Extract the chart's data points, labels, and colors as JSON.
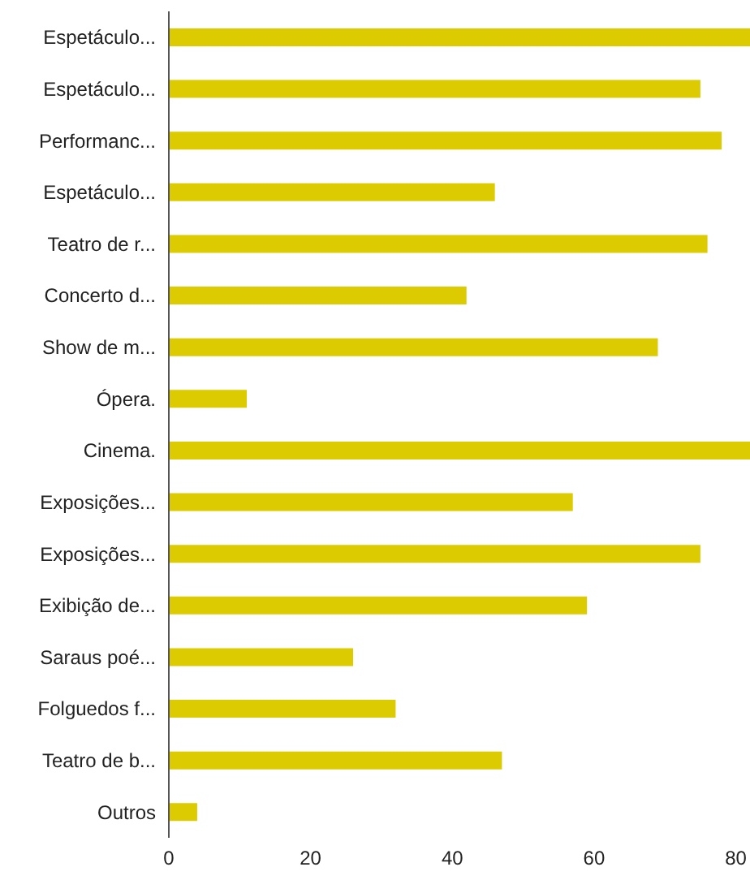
{
  "chart_data": {
    "type": "bar",
    "orientation": "horizontal",
    "categories": [
      "Espetáculo...",
      "Espetáculo...",
      "Performanc...",
      "Espetáculo...",
      "Teatro de r...",
      "Concerto d...",
      "Show de m...",
      "Ópera.",
      "Cinema.",
      "Exposições...",
      "Exposições...",
      "Exibição de...",
      "Saraus poé...",
      "Folguedos f...",
      "Teatro de b...",
      "Outros"
    ],
    "values": [
      82,
      75,
      78,
      46,
      76,
      42,
      69,
      11,
      82,
      57,
      75,
      59,
      26,
      32,
      47,
      4
    ],
    "color": "#dccb00",
    "xlim": [
      0,
      82
    ],
    "xticks": [
      0,
      20,
      40,
      60,
      80
    ],
    "grid": false,
    "legend": false
  }
}
